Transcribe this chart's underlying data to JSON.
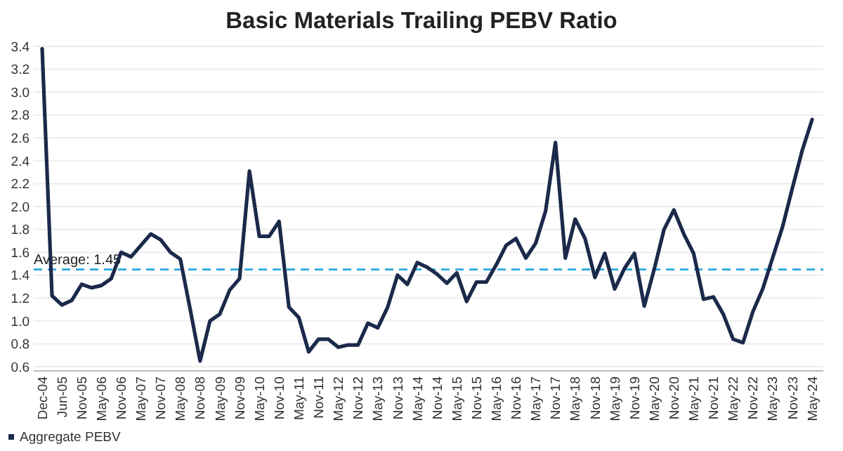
{
  "chart_data": {
    "type": "line",
    "title": "Basic Materials Trailing PEBV Ratio",
    "categories": [
      "Dec-04",
      null,
      "Jun-05",
      null,
      "Nov-05",
      null,
      "May-06",
      null,
      "Nov-06",
      null,
      "May-07",
      null,
      "Nov-07",
      null,
      "May-08",
      null,
      "Nov-08",
      null,
      "May-09",
      null,
      "Nov-09",
      null,
      "May-10",
      null,
      "Nov-10",
      null,
      "May-11",
      null,
      "Nov-11",
      null,
      "May-12",
      null,
      "Nov-12",
      null,
      "May-13",
      null,
      "Nov-13",
      null,
      "May-14",
      null,
      "Nov-14",
      null,
      "May-15",
      null,
      "Nov-15",
      null,
      "May-16",
      null,
      "Nov-16",
      null,
      "May-17",
      null,
      "Nov-17",
      null,
      "May-18",
      null,
      "Nov-18",
      null,
      "May-19",
      null,
      "Nov-19",
      null,
      "May-20",
      null,
      "Nov-20",
      null,
      "May-21",
      null,
      "Nov-21",
      null,
      "May-22",
      null,
      "Nov-22",
      null,
      "May-23",
      null,
      "Nov-23",
      null,
      "May-24"
    ],
    "series": [
      {
        "name": "Aggregate PEBV",
        "color": "#1b2a4a",
        "values": [
          3.38,
          1.22,
          1.14,
          1.18,
          1.32,
          1.29,
          1.31,
          1.37,
          1.6,
          1.56,
          1.66,
          1.76,
          1.71,
          1.6,
          1.54,
          1.1,
          0.65,
          1.0,
          1.06,
          1.27,
          1.37,
          2.31,
          1.74,
          1.74,
          1.87,
          1.12,
          1.03,
          0.73,
          0.84,
          0.84,
          0.77,
          0.79,
          0.79,
          0.98,
          0.94,
          1.12,
          1.4,
          1.32,
          1.51,
          1.47,
          1.41,
          1.33,
          1.42,
          1.17,
          1.34,
          1.34,
          1.49,
          1.66,
          1.72,
          1.55,
          1.68,
          1.96,
          2.56,
          1.55,
          1.89,
          1.72,
          1.38,
          1.59,
          1.28,
          1.46,
          1.59,
          1.13,
          1.45,
          1.8,
          1.97,
          1.76,
          1.59,
          1.19,
          1.21,
          1.06,
          0.84,
          0.81,
          1.08,
          1.28,
          1.55,
          1.82,
          2.16,
          2.49,
          2.76
        ]
      }
    ],
    "ylim": [
      0.6,
      3.4
    ],
    "yticks": [
      {
        "value": 0.6,
        "label": "0.6"
      },
      {
        "value": 0.8,
        "label": "0.8"
      },
      {
        "value": 1,
        "label": "1.0"
      },
      {
        "value": 1.2,
        "label": "1.2"
      },
      {
        "value": 1.4,
        "label": "1.4"
      },
      {
        "value": 1.6,
        "label": "1.6"
      },
      {
        "value": 1.8,
        "label": "1.8"
      },
      {
        "value": 2,
        "label": "2.0"
      },
      {
        "value": 2.2,
        "label": "2.2"
      },
      {
        "value": 2.4,
        "label": "2.4"
      },
      {
        "value": 2.6,
        "label": "2.6"
      },
      {
        "value": 2.8,
        "label": "2.8"
      },
      {
        "value": 3,
        "label": "3.0"
      },
      {
        "value": 3.2,
        "label": "3.2"
      },
      {
        "value": 3.4,
        "label": "3.4"
      }
    ],
    "grid": "y",
    "legend": "bottom left",
    "ref_lines": [
      {
        "axis": "y",
        "value": 1.45,
        "label": "Average: 1.45",
        "color": "#29a8e0",
        "line_style": "dashed"
      }
    ]
  }
}
